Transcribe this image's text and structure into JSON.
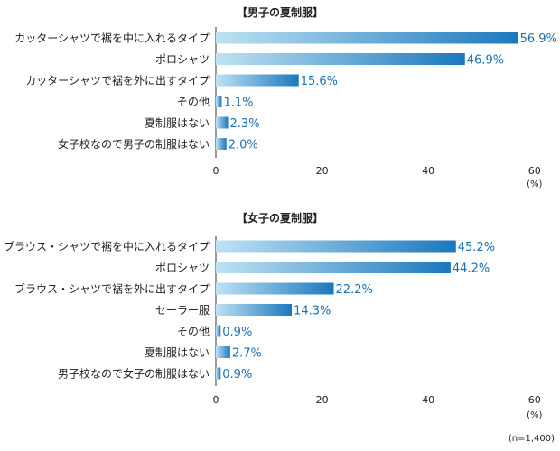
{
  "chart_data": [
    {
      "type": "bar",
      "orientation": "horizontal",
      "title": "【男子の夏制服】",
      "categories": [
        "カッターシャツで裾を中に入れるタイプ",
        "ポロシャツ",
        "カッターシャツで裾を外に出すタイプ",
        "その他",
        "夏制服はない",
        "女子校なので男子の制服はない"
      ],
      "values": [
        56.9,
        46.9,
        15.6,
        1.1,
        2.3,
        2.0
      ],
      "value_labels": [
        "56.9%",
        "46.9%",
        "15.6%",
        "1.1%",
        "2.3%",
        "2.0%"
      ],
      "xlim": [
        0,
        60
      ],
      "ticks": [
        "0",
        "20",
        "40",
        "60"
      ],
      "unit": "(%)"
    },
    {
      "type": "bar",
      "orientation": "horizontal",
      "title": "【女子の夏制服】",
      "categories": [
        "ブラウス・シャツで裾を中に入れるタイプ",
        "ポロシャツ",
        "ブラウス・シャツで裾を外に出すタイプ",
        "セーラー服",
        "その他",
        "夏制服はない",
        "男子校なので女子の制服はない"
      ],
      "values": [
        45.2,
        44.2,
        22.2,
        14.3,
        0.9,
        2.7,
        0.9
      ],
      "value_labels": [
        "45.2%",
        "44.2%",
        "22.2%",
        "14.3%",
        "0.9%",
        "2.7%",
        "0.9%"
      ],
      "xlim": [
        0,
        60
      ],
      "ticks": [
        "0",
        "20",
        "40",
        "60"
      ],
      "unit": "(%)"
    }
  ],
  "note": "(n=1,400)",
  "colors": {
    "bar_start": "#bfe2f3",
    "bar_end": "#1b78be",
    "value_text": "#1a6fb0"
  }
}
